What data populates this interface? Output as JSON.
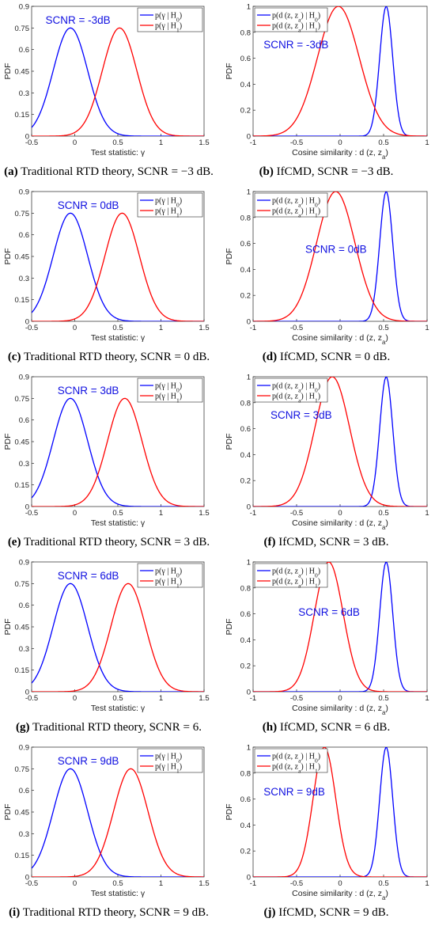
{
  "colors": {
    "h0": "#0000ff",
    "h1": "#ff0000",
    "annotation": "#1010e0"
  },
  "panels": [
    {
      "caption_id": "(a)",
      "caption_text": " Traditional RTD theory, SCNR = −3 dB.",
      "chart_data": {
        "type": "line",
        "ylabel": "PDF",
        "xlabel": "Test statistic: γ",
        "xlim": [
          -0.5,
          1.5
        ],
        "ylim": [
          0,
          0.9
        ],
        "xticks": [
          -0.5,
          0,
          0.5,
          1,
          1.5
        ],
        "xtick_labels": [
          "-0.5",
          "0",
          "0.5",
          "1",
          "1.5"
        ],
        "yticks": [
          0,
          0.15,
          0.3,
          0.45,
          0.6,
          0.75,
          0.9
        ],
        "ytick_labels": [
          "0",
          "0.15",
          "0.3",
          "0.45",
          "0.6",
          "0.75",
          "0.9"
        ],
        "annotation": "SCNR = -3dB",
        "legend_position": "top-right",
        "series": [
          {
            "name": "p(γ | H0)",
            "color": "#0000ff",
            "peak_x": -0.05,
            "peak_y": 0.75,
            "sigma": 0.2
          },
          {
            "name": "p(γ | H1)",
            "color": "#ff0000",
            "peak_x": 0.52,
            "peak_y": 0.75,
            "sigma": 0.2
          }
        ]
      }
    },
    {
      "caption_id": "(b)",
      "caption_text": " IfCMD, SCNR = −3 dB.",
      "chart_data": {
        "type": "line",
        "ylabel": "PDF",
        "xlabel": "Cosine similarity : d (z, za)",
        "xlim": [
          -1,
          1
        ],
        "ylim": [
          0,
          1
        ],
        "xticks": [
          -1,
          -0.5,
          0,
          0.5,
          1
        ],
        "xtick_labels": [
          "-1",
          "-0.5",
          "0",
          "0.5",
          "1"
        ],
        "yticks": [
          0,
          0.2,
          0.4,
          0.6,
          0.8,
          1
        ],
        "ytick_labels": [
          "0",
          "0.2",
          "0.4",
          "0.6",
          "0.8",
          "1"
        ],
        "annotation": "SCNR = -3dB",
        "legend_position": "top-left",
        "series": [
          {
            "name": "p(d (z, za) | H0)",
            "color": "#0000ff",
            "peak_x": 0.53,
            "peak_y": 1,
            "sigma": 0.075
          },
          {
            "name": "p(d (z, za) | H1)",
            "color": "#ff0000",
            "peak_x": -0.02,
            "peak_y": 1,
            "sigma": 0.24
          }
        ]
      }
    },
    {
      "caption_id": "(c)",
      "caption_text": " Traditional RTD theory, SCNR = 0 dB.",
      "chart_data": {
        "type": "line",
        "ylabel": "PDF",
        "xlabel": "Test statistic: γ",
        "xlim": [
          -0.5,
          1.5
        ],
        "ylim": [
          0,
          0.9
        ],
        "xticks": [
          -0.5,
          0,
          0.5,
          1,
          1.5
        ],
        "xtick_labels": [
          "-0.5",
          "0",
          "0.5",
          "1",
          "1.5"
        ],
        "yticks": [
          0,
          0.15,
          0.3,
          0.45,
          0.6,
          0.75,
          0.9
        ],
        "ytick_labels": [
          "0",
          "0.15",
          "0.3",
          "0.45",
          "0.6",
          "0.75",
          "0.9"
        ],
        "annotation": "SCNR = 0dB",
        "legend_position": "top-right",
        "series": [
          {
            "name": "p(γ | H0)",
            "color": "#0000ff",
            "peak_x": -0.05,
            "peak_y": 0.75,
            "sigma": 0.2
          },
          {
            "name": "p(γ | H1)",
            "color": "#ff0000",
            "peak_x": 0.55,
            "peak_y": 0.75,
            "sigma": 0.2
          }
        ]
      }
    },
    {
      "caption_id": "(d)",
      "caption_text": " IfCMD, SCNR = 0 dB.",
      "chart_data": {
        "type": "line",
        "ylabel": "PDF",
        "xlabel": "Cosine similarity : d (z, za)",
        "xlim": [
          -1,
          1
        ],
        "ylim": [
          0,
          1
        ],
        "xticks": [
          -1,
          -0.5,
          0,
          0.5,
          1
        ],
        "xtick_labels": [
          "-1",
          "-0.5",
          "0",
          "0.5",
          "1"
        ],
        "yticks": [
          0,
          0.2,
          0.4,
          0.6,
          0.8,
          1
        ],
        "ytick_labels": [
          "0",
          "0.2",
          "0.4",
          "0.6",
          "0.8",
          "1"
        ],
        "annotation": "SCNR = 0dB",
        "legend_position": "top-left",
        "series": [
          {
            "name": "p(d (z, za) | H0)",
            "color": "#0000ff",
            "peak_x": 0.53,
            "peak_y": 1,
            "sigma": 0.075
          },
          {
            "name": "p(d (z, za) | H1)",
            "color": "#ff0000",
            "peak_x": -0.05,
            "peak_y": 1,
            "sigma": 0.22
          }
        ]
      }
    },
    {
      "caption_id": "(e)",
      "caption_text": " Traditional RTD theory, SCNR = 3 dB.",
      "chart_data": {
        "type": "line",
        "ylabel": "PDF",
        "xlabel": "Test statistic: γ",
        "xlim": [
          -0.5,
          1.5
        ],
        "ylim": [
          0,
          0.9
        ],
        "xticks": [
          -0.5,
          0,
          0.5,
          1,
          1.5
        ],
        "xtick_labels": [
          "-0.5",
          "0",
          "0.5",
          "1",
          "1.5"
        ],
        "yticks": [
          0,
          0.15,
          0.3,
          0.45,
          0.6,
          0.75,
          0.9
        ],
        "ytick_labels": [
          "0",
          "0.15",
          "0.3",
          "0.45",
          "0.6",
          "0.75",
          "0.9"
        ],
        "annotation": "SCNR = 3dB",
        "legend_position": "top-right",
        "series": [
          {
            "name": "p(γ | H0)",
            "color": "#0000ff",
            "peak_x": -0.05,
            "peak_y": 0.75,
            "sigma": 0.2
          },
          {
            "name": "p(γ | H1)",
            "color": "#ff0000",
            "peak_x": 0.58,
            "peak_y": 0.75,
            "sigma": 0.2
          }
        ]
      }
    },
    {
      "caption_id": "(f)",
      "caption_text": " IfCMD, SCNR = 3 dB.",
      "chart_data": {
        "type": "line",
        "ylabel": "PDF",
        "xlabel": "Cosine similarity : d (z, za)",
        "xlim": [
          -1,
          1
        ],
        "ylim": [
          0,
          1
        ],
        "xticks": [
          -1,
          -0.5,
          0,
          0.5,
          1
        ],
        "xtick_labels": [
          "-1",
          "-0.5",
          "0",
          "0.5",
          "1"
        ],
        "yticks": [
          0,
          0.2,
          0.4,
          0.6,
          0.8,
          1
        ],
        "ytick_labels": [
          "0",
          "0.2",
          "0.4",
          "0.6",
          "0.8",
          "1"
        ],
        "annotation": "SCNR = 3dB",
        "legend_position": "top-left",
        "series": [
          {
            "name": "p(d (z, za) | H0)",
            "color": "#0000ff",
            "peak_x": 0.53,
            "peak_y": 1,
            "sigma": 0.075
          },
          {
            "name": "p(d (z, za) | H1)",
            "color": "#ff0000",
            "peak_x": -0.09,
            "peak_y": 1,
            "sigma": 0.2
          }
        ]
      }
    },
    {
      "caption_id": "(g)",
      "caption_text": " Traditional RTD theory, SCNR = 6.",
      "chart_data": {
        "type": "line",
        "ylabel": "PDF",
        "xlabel": "Test statistic: γ",
        "xlim": [
          -0.5,
          1.5
        ],
        "ylim": [
          0,
          0.9
        ],
        "xticks": [
          -0.5,
          0,
          0.5,
          1,
          1.5
        ],
        "xtick_labels": [
          "-0.5",
          "0",
          "0.5",
          "1",
          "1.5"
        ],
        "yticks": [
          0,
          0.15,
          0.3,
          0.45,
          0.6,
          0.75,
          0.9
        ],
        "ytick_labels": [
          "0",
          "0.15",
          "0.3",
          "0.45",
          "0.6",
          "0.75",
          "0.9"
        ],
        "annotation": "SCNR = 6dB",
        "legend_position": "top-right",
        "series": [
          {
            "name": "p(γ | H0)",
            "color": "#0000ff",
            "peak_x": -0.05,
            "peak_y": 0.75,
            "sigma": 0.2
          },
          {
            "name": "p(γ | H1)",
            "color": "#ff0000",
            "peak_x": 0.62,
            "peak_y": 0.75,
            "sigma": 0.2
          }
        ]
      }
    },
    {
      "caption_id": "(h)",
      "caption_text": " IfCMD, SCNR = 6 dB.",
      "chart_data": {
        "type": "line",
        "ylabel": "PDF",
        "xlabel": "Cosine similarity : d (z, za)",
        "xlim": [
          -1,
          1
        ],
        "ylim": [
          0,
          1
        ],
        "xticks": [
          -1,
          -0.5,
          0,
          0.5,
          1
        ],
        "xtick_labels": [
          "-1",
          "-0.5",
          "0",
          "0.5",
          "1"
        ],
        "yticks": [
          0,
          0.2,
          0.4,
          0.6,
          0.8,
          1
        ],
        "ytick_labels": [
          "0",
          "0.2",
          "0.4",
          "0.6",
          "0.8",
          "1"
        ],
        "annotation": "SCNR = 6dB",
        "legend_position": "top-left",
        "series": [
          {
            "name": "p(d (z, za) | H0)",
            "color": "#0000ff",
            "peak_x": 0.53,
            "peak_y": 1,
            "sigma": 0.075
          },
          {
            "name": "p(d (z, za) | H1)",
            "color": "#ff0000",
            "peak_x": -0.13,
            "peak_y": 1,
            "sigma": 0.165
          }
        ]
      }
    },
    {
      "caption_id": "(i)",
      "caption_text": " Traditional RTD theory, SCNR = 9 dB.",
      "chart_data": {
        "type": "line",
        "ylabel": "PDF",
        "xlabel": "Test statistic: γ",
        "xlim": [
          -0.5,
          1.5
        ],
        "ylim": [
          0,
          0.9
        ],
        "xticks": [
          -0.5,
          0,
          0.5,
          1,
          1.5
        ],
        "xtick_labels": [
          "-0.5",
          "0",
          "0.5",
          "1",
          "1.5"
        ],
        "yticks": [
          0,
          0.15,
          0.3,
          0.45,
          0.6,
          0.75,
          0.9
        ],
        "ytick_labels": [
          "0",
          "0.15",
          "0.3",
          "0.45",
          "0.6",
          "0.75",
          "0.9"
        ],
        "annotation": "SCNR = 9dB",
        "legend_position": "top-right",
        "series": [
          {
            "name": "p(γ | H0)",
            "color": "#0000ff",
            "peak_x": -0.05,
            "peak_y": 0.75,
            "sigma": 0.2
          },
          {
            "name": "p(γ | H1)",
            "color": "#ff0000",
            "peak_x": 0.65,
            "peak_y": 0.75,
            "sigma": 0.2
          }
        ]
      }
    },
    {
      "caption_id": "(j)",
      "caption_text": " IfCMD, SCNR = 9 dB.",
      "chart_data": {
        "type": "line",
        "ylabel": "PDF",
        "xlabel": "Cosine similarity : d (z, za)",
        "xlim": [
          -1,
          1
        ],
        "ylim": [
          0,
          1
        ],
        "xticks": [
          -1,
          -0.5,
          0,
          0.5,
          1
        ],
        "xtick_labels": [
          "-1",
          "-0.5",
          "0",
          "0.5",
          "1"
        ],
        "yticks": [
          0,
          0.2,
          0.4,
          0.6,
          0.8,
          1
        ],
        "ytick_labels": [
          "0",
          "0.2",
          "0.4",
          "0.6",
          "0.8",
          "1"
        ],
        "annotation": "SCNR = 9dB",
        "legend_position": "top-left",
        "series": [
          {
            "name": "p(d (z, za) | H0)",
            "color": "#0000ff",
            "peak_x": 0.53,
            "peak_y": 1,
            "sigma": 0.075
          },
          {
            "name": "p(d (z, za) | H1)",
            "color": "#ff0000",
            "peak_x": -0.18,
            "peak_y": 1,
            "sigma": 0.13
          }
        ]
      }
    }
  ]
}
